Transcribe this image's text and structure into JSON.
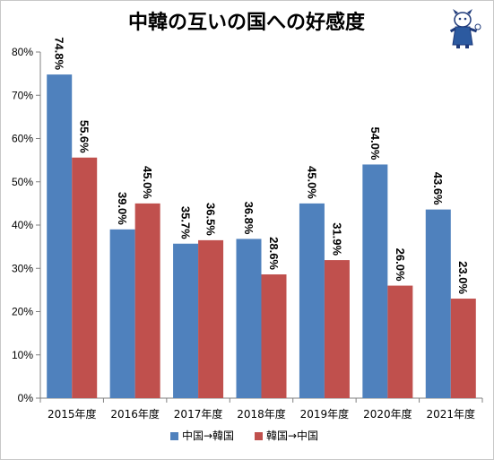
{
  "chart_data": {
    "type": "bar",
    "title": "中韓の互いの国への好感度",
    "categories": [
      "2015年度",
      "2016年度",
      "2017年度",
      "2018年度",
      "2019年度",
      "2020年度",
      "2021年度"
    ],
    "series": [
      {
        "name": "中国→韓国",
        "color": "#4f81bd",
        "values": [
          74.8,
          39.0,
          35.7,
          36.8,
          45.0,
          54.0,
          43.6
        ],
        "labels": [
          "74.8%",
          "39.0%",
          "35.7%",
          "36.8%",
          "45.0%",
          "54.0%",
          "43.6%"
        ]
      },
      {
        "name": "韓国→中国",
        "color": "#c0504d",
        "values": [
          55.6,
          45.0,
          36.5,
          28.6,
          31.9,
          26.0,
          23.0
        ],
        "labels": [
          "55.6%",
          "45.0%",
          "36.5%",
          "28.6%",
          "31.9%",
          "26.0%",
          "23.0%"
        ]
      }
    ],
    "ylim": [
      0,
      80
    ],
    "yticks": [
      "0%",
      "10%",
      "20%",
      "30%",
      "40%",
      "50%",
      "60%",
      "70%",
      "80%"
    ],
    "xlabel": "",
    "ylabel": "",
    "grid": false,
    "legend": "bottom"
  },
  "logo": {
    "icon": "mascot-illustration"
  }
}
